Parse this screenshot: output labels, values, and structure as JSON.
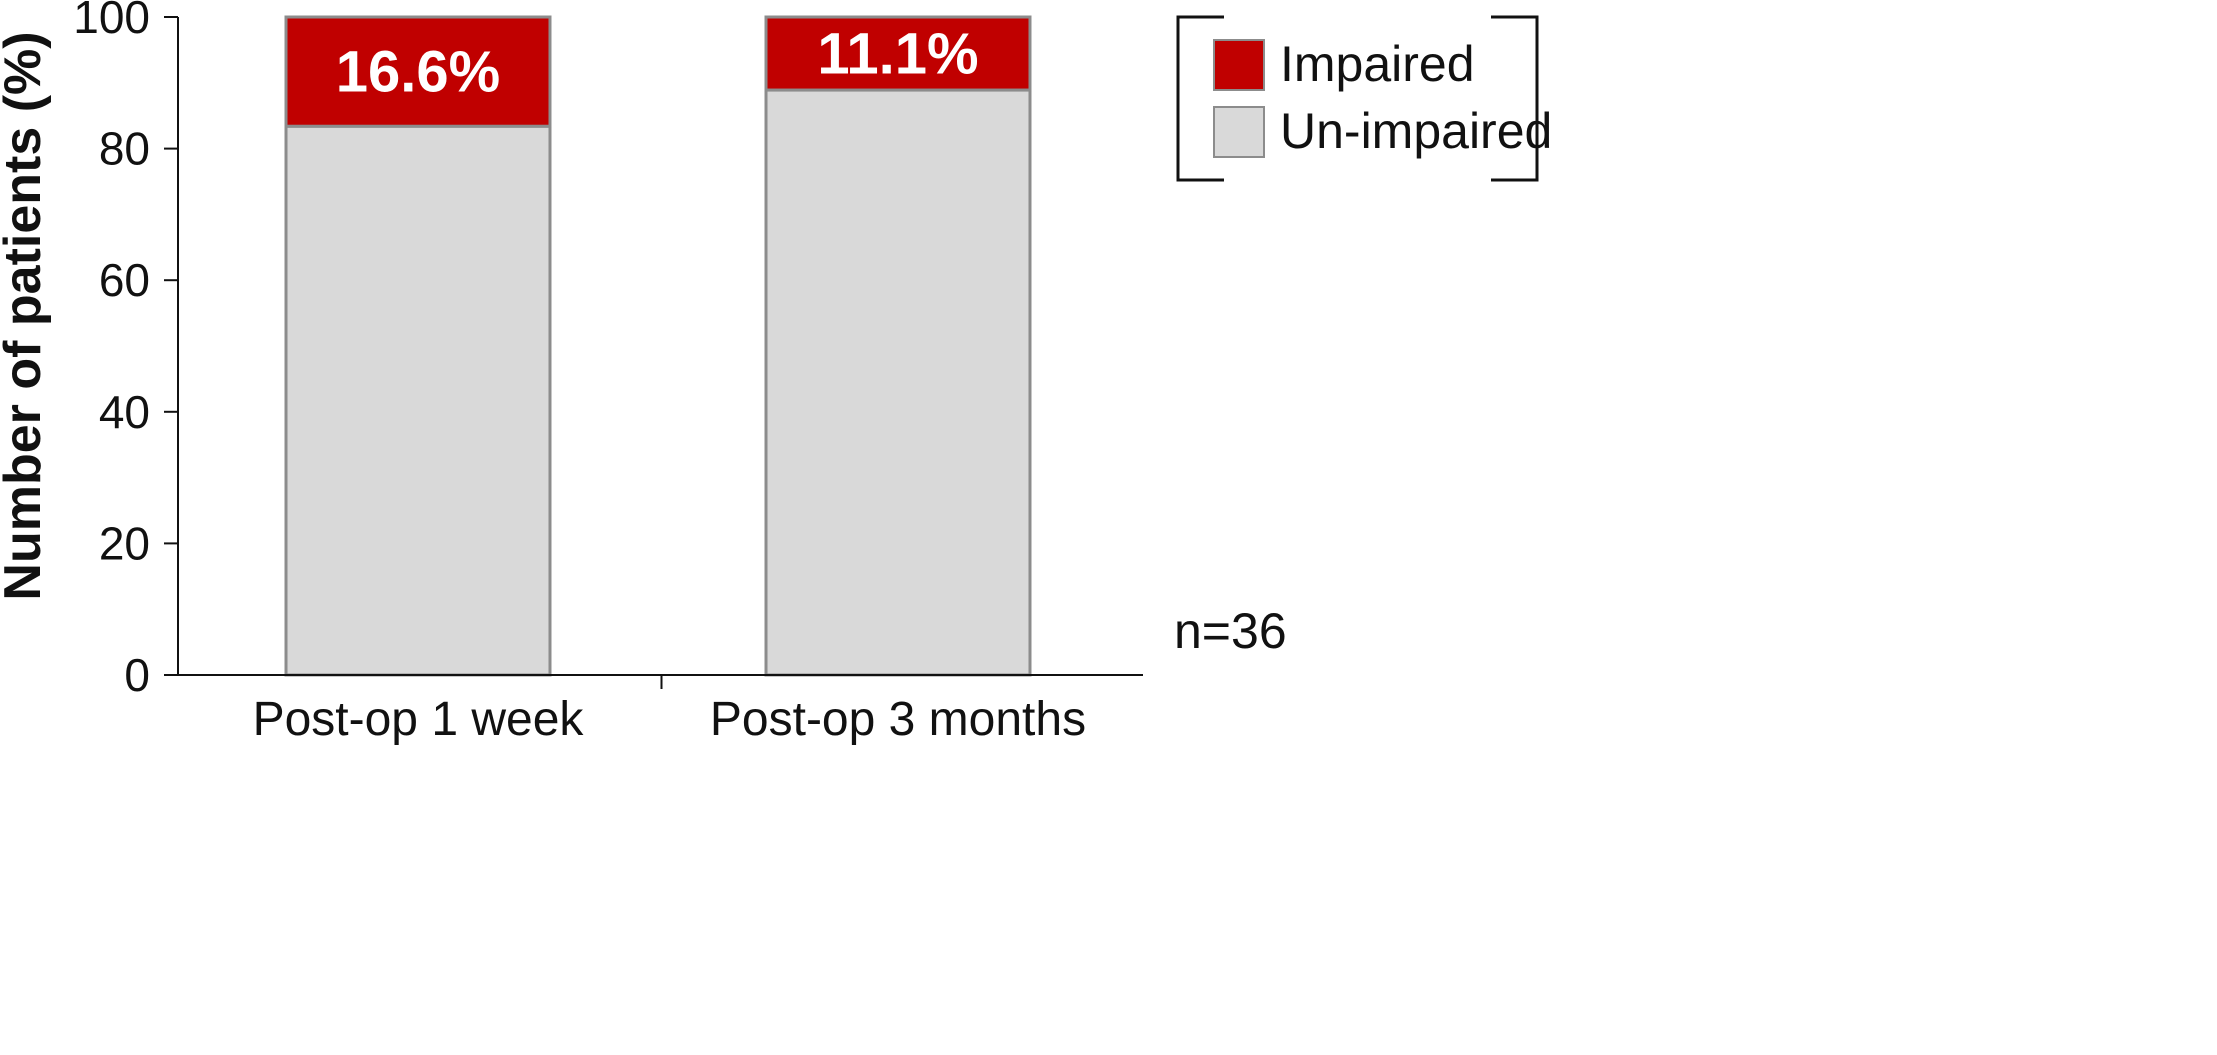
{
  "chart_data": {
    "type": "bar",
    "stacked": true,
    "categories": [
      "Post-op 1 week",
      "Post-op 3 months"
    ],
    "series": [
      {
        "name": "Un-impaired",
        "values": [
          83.4,
          88.9
        ],
        "color": "#d9d9d9"
      },
      {
        "name": "Impaired",
        "values": [
          16.6,
          11.1
        ],
        "color": "#c00000"
      }
    ],
    "data_labels": [
      "16.6%",
      "11.1%"
    ],
    "ylabel": "Number of patients (%)",
    "xlabel": "",
    "ylim": [
      0,
      100
    ],
    "yticks": [
      0,
      20,
      40,
      60,
      80,
      100
    ],
    "grid": false,
    "legend": {
      "position": "top-right",
      "entries": [
        {
          "label": "Impaired",
          "color": "#c00000"
        },
        {
          "label": "Un-impaired",
          "color": "#d9d9d9"
        }
      ]
    },
    "annotation": "n=36"
  }
}
